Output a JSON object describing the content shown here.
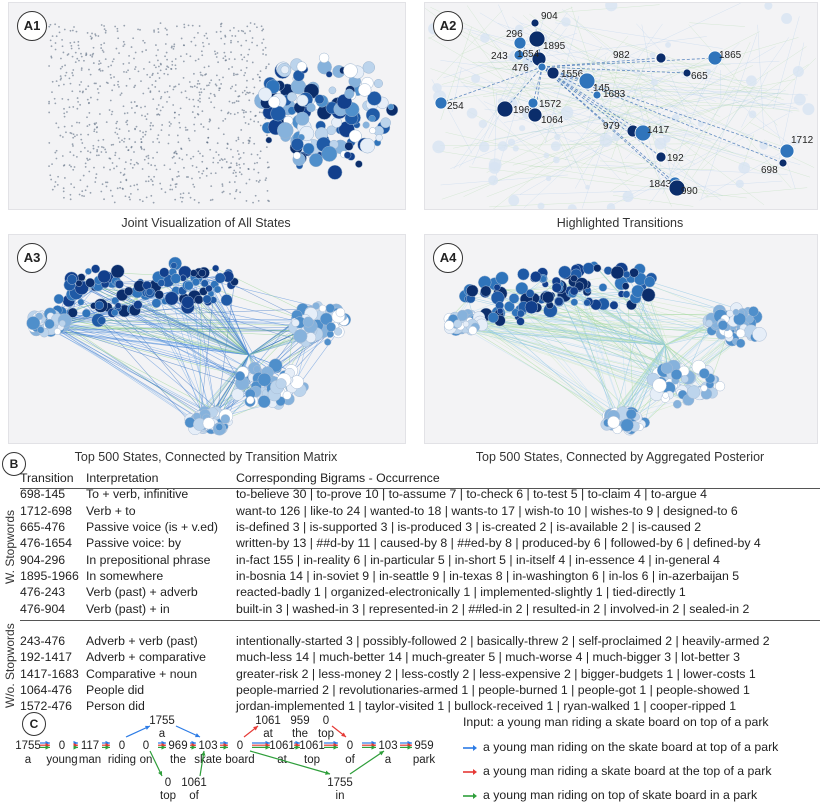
{
  "panels": [
    {
      "id": "A1",
      "caption": "Joint Visualization of All States"
    },
    {
      "id": "A2",
      "caption": "Highlighted Transitions"
    },
    {
      "id": "A3",
      "caption": "Top 500 States, Connected by Transition Matrix"
    },
    {
      "id": "A4",
      "caption": "Top 500 States, Connected by Aggregated Posterior"
    }
  ],
  "a2_nodes": [
    "904",
    "296",
    "1895",
    "243",
    "1654",
    "476",
    "1556",
    "145",
    "982",
    "1865",
    "665",
    "254",
    "1966",
    "1572",
    "1064",
    "1683",
    "979",
    "1417",
    "192",
    "1712",
    "698",
    "1843",
    "990"
  ],
  "section_b": {
    "label": "B",
    "headers": {
      "transition": "Transition",
      "interpretation": "Interpretation",
      "bigrams": "Corresponding Bigrams - Occurrence"
    },
    "group1": "W. Stopwords",
    "group2": "W/o. Stopwords",
    "rows1": [
      {
        "t": "698-145",
        "i": "To + verb, infinitive",
        "b": "to-believe 30 | to-prove 10 | to-assume 7 | to-check 6 | to-test 5 | to-claim 4 | to-argue 4"
      },
      {
        "t": "1712-698",
        "i": "Verb + to",
        "b": "want-to 126 | like-to 24 | wanted-to 18 | wants-to 17 | wish-to 10 | wishes-to 9 | designed-to 6"
      },
      {
        "t": "665-476",
        "i": "Passive voice (is + v.ed)",
        "b": "is-defined 3 | is-supported 3 | is-produced 3 | is-created 2 | is-available 2 | is-caused 2"
      },
      {
        "t": "476-1654",
        "i": "Passive voice: by",
        "b": "written-by 13 | ##d-by 11 | caused-by 8 | ##ed-by 8 | produced-by 6 | followed-by 6 | defined-by 4"
      },
      {
        "t": "904-296",
        "i": "In prepositional phrase",
        "b": "in-fact 155 | in-reality 6 | in-particular 5 | in-short 5 | in-itself 4 | in-essence 4 | in-general 4"
      },
      {
        "t": "1895-1966",
        "i": "In somewhere",
        "b": "in-bosnia 14 | in-soviet 9 | in-seattle 9 | in-texas 8 | in-washington 6 | in-los 6 | in-azerbaijan 5"
      },
      {
        "t": "476-243",
        "i": "Verb (past) + adverb",
        "b": "reacted-badly 1 | organized-electronically 1 | implemented-slightly 1 | tied-directly 1"
      },
      {
        "t": "476-904",
        "i": "Verb (past) + in",
        "b": "built-in 3 | washed-in 3 | represented-in 2 | ##led-in 2 | resulted-in 2 | involved-in 2 | sealed-in 2"
      }
    ],
    "rows2": [
      {
        "t": "243-476",
        "i": "Adverb + verb (past)",
        "b": "intentionally-started 3 | possibly-followed 2 | basically-threw 2 | self-proclaimed 2 | heavily-armed 2"
      },
      {
        "t": "192-1417",
        "i": "Adverb + comparative",
        "b": "much-less 14 | much-better 14 | much-greater 5 | much-worse 4 | much-bigger 3 | lot-better 3"
      },
      {
        "t": "1417-1683",
        "i": "Comparative + noun",
        "b": "greater-risk 2 | less-money 2 | less-costly 2 | less-expensive 2 | bigger-budgets 1 | lower-costs 1"
      },
      {
        "t": "1064-476",
        "i": "People did",
        "b": "people-married 2 | revolutionaries-armed 1 | people-burned 1 | people-got 1 | people-showed 1"
      },
      {
        "t": "1572-476",
        "i": "Person did",
        "b": "jordan-implemented 1 | taylor-visited 1 | bullock-received 1 | ryan-walked 1 | cooper-ripped 1"
      }
    ]
  },
  "section_c": {
    "label": "C",
    "main_states": [
      "1755",
      "0",
      "117",
      "0",
      "0",
      "969",
      "103",
      "0",
      "1061",
      "1061",
      "0",
      "103",
      "959"
    ],
    "main_words": [
      "a",
      "young",
      "man",
      "riding",
      "on",
      "the",
      "skate",
      "board",
      "at",
      "top",
      "of",
      "a",
      "park"
    ],
    "top_branch": [
      {
        "state": "1755",
        "word": "a"
      },
      {
        "state": "1061",
        "word": "at"
      },
      {
        "state": "959",
        "word": "the"
      },
      {
        "state": "0",
        "word": "top"
      }
    ],
    "bottom_branch": [
      {
        "state": "0",
        "word": "top"
      },
      {
        "state": "1061",
        "word": "of"
      },
      {
        "state": "1755",
        "word": "in"
      }
    ],
    "input": "Input: a young man riding a skate board on top of a park",
    "legend": [
      {
        "color": "#2c7be5",
        "text": "a young man riding on the skate board at top of a park"
      },
      {
        "color": "#e53935",
        "text": "a young man riding a skate board at the top of a park"
      },
      {
        "color": "#2e9e3a",
        "text": "a young man riding on top of skate board in a park"
      }
    ]
  }
}
